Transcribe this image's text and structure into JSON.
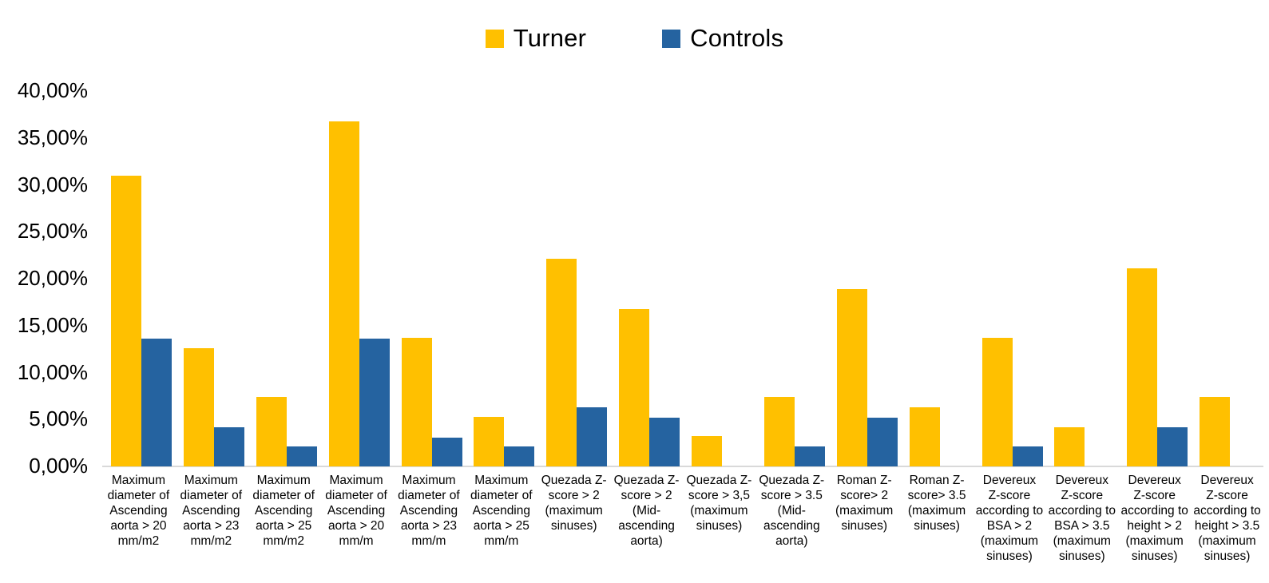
{
  "legend": {
    "items": [
      {
        "label": "Turner",
        "color": "#FFC000"
      },
      {
        "label": "Controls",
        "color": "#2563A0"
      }
    ]
  },
  "y_axis": {
    "ticks": [
      "40,00%",
      "35,00%",
      "30,00%",
      "25,00%",
      "20,00%",
      "15,00%",
      "10,00%",
      "5,00%",
      "0,00%"
    ],
    "tick_values": [
      40,
      35,
      30,
      25,
      20,
      15,
      10,
      5,
      0
    ]
  },
  "colors": {
    "turner": "#FFC000",
    "controls": "#2563A0",
    "axis_line": "#D9D9D9",
    "text": "#000000"
  },
  "chart_data": {
    "type": "bar",
    "title": "",
    "xlabel": "",
    "ylabel": "",
    "ylim": [
      0,
      40
    ],
    "grid": false,
    "legend_position": "top",
    "y_tick_format": "percent-comma",
    "categories": [
      "Maximum diameter of Ascending aorta > 20 mm/m2",
      "Maximum diameter of Ascending aorta > 23 mm/m2",
      "Maximum diameter of Ascending aorta > 25 mm/m2",
      "Maximum diameter of Ascending aorta > 20 mm/m",
      "Maximum diameter of Ascending aorta > 23 mm/m",
      "Maximum diameter of Ascending aorta > 25 mm/m",
      "Quezada Z-score > 2 (maximum sinuses)",
      "Quezada Z-score  > 2 (Mid-ascending aorta)",
      "Quezada Z-score > 3,5 (maximum sinuses)",
      "Quezada Z-score  > 3.5 (Mid-ascending aorta)",
      "Roman  Z-score> 2 (maximum sinuses)",
      "Roman  Z-score> 3.5 (maximum sinuses)",
      "Devereux Z-score according to BSA > 2 (maximum sinuses)",
      "Devereux Z-score according to BSA > 3.5 (maximum sinuses)",
      "Devereux Z-score according to height > 2 (maximum sinuses)",
      "Devereux Z-score according to height > 3.5 (maximum sinuses)"
    ],
    "label_lines": [
      [
        "Maximum",
        "diameter of",
        "Ascending",
        "aorta > 20",
        "mm/m2"
      ],
      [
        "Maximum",
        "diameter of",
        "Ascending",
        "aorta > 23",
        "mm/m2"
      ],
      [
        "Maximum",
        "diameter of",
        "Ascending",
        "aorta > 25",
        "mm/m2"
      ],
      [
        "Maximum",
        "diameter of",
        "Ascending",
        "aorta > 20",
        "mm/m"
      ],
      [
        "Maximum",
        "diameter of",
        "Ascending",
        "aorta > 23",
        "mm/m"
      ],
      [
        "Maximum",
        "diameter of",
        "Ascending",
        "aorta > 25",
        "mm/m"
      ],
      [
        "Quezada Z-",
        "score > 2",
        "(maximum",
        "sinuses)"
      ],
      [
        "Quezada Z-",
        "score  > 2",
        "(Mid-",
        "ascending",
        "aorta)"
      ],
      [
        "Quezada Z-",
        "score > 3,5",
        "(maximum",
        "sinuses)"
      ],
      [
        "Quezada Z-",
        "score  > 3.5",
        "(Mid-",
        "ascending",
        "aorta)"
      ],
      [
        "Roman  Z-",
        "score> 2",
        "(maximum",
        "sinuses)"
      ],
      [
        "Roman  Z-",
        "score> 3.5",
        "(maximum",
        "sinuses)"
      ],
      [
        "Devereux",
        "Z-score",
        "according to",
        "BSA > 2",
        "(maximum",
        "sinuses)"
      ],
      [
        "Devereux",
        "Z-score",
        "according to",
        "BSA > 3.5",
        "(maximum",
        "sinuses)"
      ],
      [
        "Devereux",
        "Z-score",
        "according to",
        "height > 2",
        "(maximum",
        "sinuses)"
      ],
      [
        "Devereux",
        "Z-score",
        "according to",
        "height > 3.5",
        "(maximum",
        "sinuses)"
      ]
    ],
    "series": [
      {
        "name": "Turner",
        "color": "#FFC000",
        "values": [
          31.0,
          12.6,
          7.4,
          36.8,
          13.7,
          5.3,
          22.1,
          16.8,
          3.2,
          7.4,
          18.9,
          6.3,
          13.7,
          4.2,
          21.1,
          7.4
        ]
      },
      {
        "name": "Controls",
        "color": "#2563A0",
        "values": [
          13.6,
          4.2,
          2.1,
          13.6,
          3.1,
          2.1,
          6.3,
          5.2,
          0,
          2.1,
          5.2,
          0,
          2.1,
          0,
          4.2,
          0
        ]
      }
    ]
  }
}
